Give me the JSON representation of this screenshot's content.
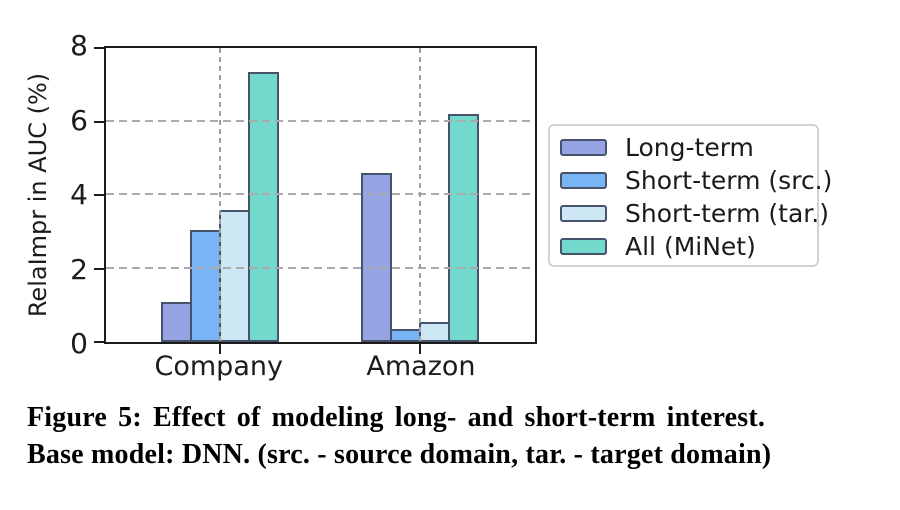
{
  "figure": {
    "caption_line1": "Figure 5: Effect of modeling long- and short-term interest.",
    "caption_line2": "Base model: DNN. (src. - source domain, tar. - target domain)"
  },
  "chart_data": {
    "type": "bar",
    "title": "",
    "xlabel": "",
    "ylabel": "RelaImpr in AUC (%)",
    "categories": [
      "Company",
      "Amazon"
    ],
    "series": [
      {
        "name": "Long-term",
        "color": "#96a4e3",
        "values": [
          1.1,
          4.6
        ]
      },
      {
        "name": "Short-term (src.)",
        "color": "#79b4f5",
        "values": [
          3.05,
          0.35
        ]
      },
      {
        "name": "Short-term (tar.)",
        "color": "#cde6f4",
        "values": [
          3.6,
          0.55
        ]
      },
      {
        "name": "All (MiNet)",
        "color": "#73d9cd",
        "values": [
          7.35,
          6.2
        ]
      }
    ],
    "ylim": [
      0,
      8
    ],
    "yticks": [
      0,
      2,
      4,
      6,
      8
    ],
    "grid": true,
    "grid_style": "dashed",
    "legend_position": "right",
    "bar_edge_color": "#46536b",
    "axis_color": "#1c1c1c",
    "grid_color": "#ababab"
  }
}
